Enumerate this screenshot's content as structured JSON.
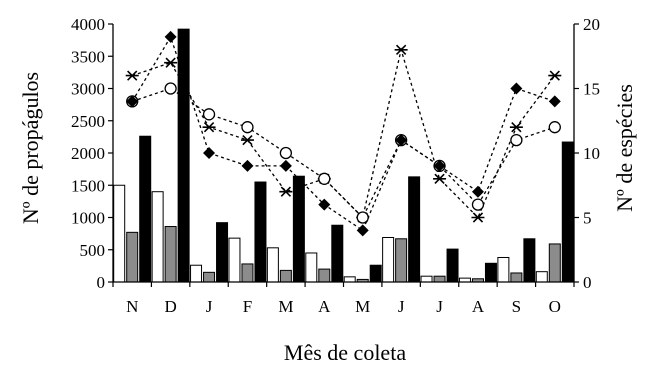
{
  "chart_data": {
    "type": "bar",
    "categories": [
      "N",
      "D",
      "J",
      "F",
      "M",
      "A",
      "M",
      "J",
      "J",
      "A",
      "S",
      "O"
    ],
    "xlabel": "Mês de coleta",
    "ylabel": "Nº de propágulos",
    "y2label": "Nº de espécies",
    "ylim": [
      0,
      4000
    ],
    "y2lim": [
      0,
      20
    ],
    "yticks": [
      "0",
      "500",
      "1000",
      "1500",
      "2000",
      "2500",
      "3000",
      "3500",
      "4000"
    ],
    "y2ticks": [
      "0",
      "5",
      "10",
      "15",
      "20"
    ],
    "grid": false,
    "legend": "none",
    "bar_series": [
      {
        "style": "white",
        "values": [
          1500,
          1400,
          260,
          680,
          530,
          450,
          80,
          690,
          90,
          60,
          380,
          160
        ]
      },
      {
        "style": "gray",
        "values": [
          770,
          860,
          150,
          280,
          180,
          200,
          40,
          670,
          90,
          50,
          140,
          590
        ]
      },
      {
        "style": "black",
        "values": [
          2260,
          3920,
          920,
          1550,
          1640,
          880,
          260,
          1630,
          510,
          290,
          670,
          2170
        ]
      }
    ],
    "line_series": [
      {
        "marker": "star",
        "values": [
          16,
          17,
          12,
          11,
          7,
          8,
          5,
          18,
          8,
          5,
          12,
          16
        ]
      },
      {
        "marker": "circle",
        "values": [
          14,
          15,
          13,
          12,
          10,
          8,
          5,
          11,
          9,
          6,
          11,
          12
        ]
      },
      {
        "marker": "diamond",
        "values": [
          14,
          19,
          10,
          9,
          9,
          6,
          4,
          11,
          9,
          7,
          15,
          14
        ]
      }
    ],
    "colors": {
      "white_bar": "#ffffff",
      "gray_bar": "#8c8c8c",
      "black_bar": "#000000",
      "axis": "#000000"
    }
  }
}
